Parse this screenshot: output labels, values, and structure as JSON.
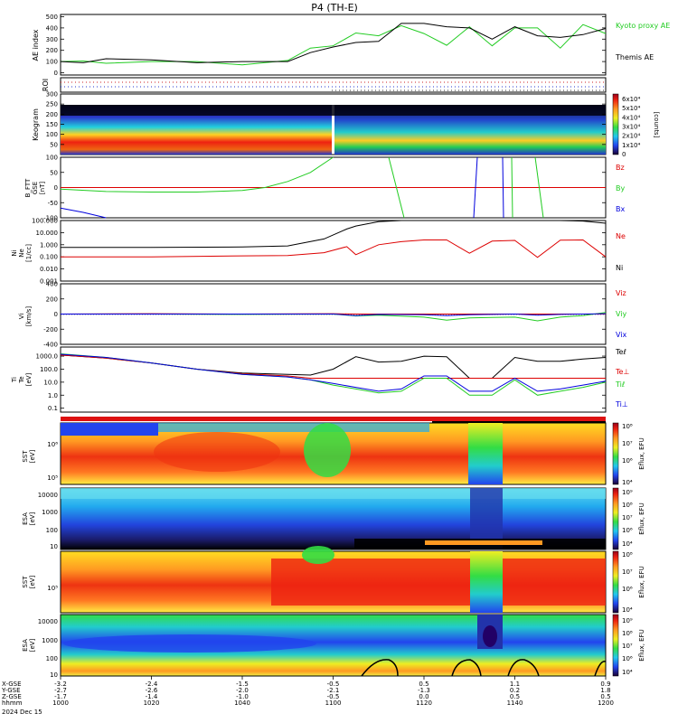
{
  "title": "P4 (TH-E)",
  "date_label": "2024 Dec 15",
  "time_axis": {
    "row_labels": [
      "X-GSE",
      "Y-GSE",
      "Z-GSE",
      "hhmm"
    ],
    "ticks": [
      {
        "time": "1000",
        "x": "-3.2",
        "y": "-2.7",
        "z": "-1.7"
      },
      {
        "time": "1020",
        "x": "-2.4",
        "y": "-2.6",
        "z": "-1.4"
      },
      {
        "time": "1040",
        "x": "-1.5",
        "y": "-2.0",
        "z": "-1.0"
      },
      {
        "time": "1100",
        "x": "-0.5",
        "y": "-2.1",
        "z": "-0.5"
      },
      {
        "time": "1120",
        "x": "0.5",
        "y": "-1.3",
        "z": "0.0"
      },
      {
        "time": "1140",
        "x": "1.1",
        "y": "0.2",
        "z": "0.5"
      },
      {
        "time": "1200",
        "x": "0.9",
        "y": "1.8",
        "z": "0.5"
      }
    ]
  },
  "colors": {
    "black": "#000000",
    "green": "#22cc22",
    "red": "#dd0000",
    "blue": "#0000dd"
  },
  "chart_data": [
    {
      "type": "line",
      "panel": "ae",
      "ylabel": "AE index",
      "yticks": [
        "0",
        "100",
        "200",
        "300",
        "400",
        "500"
      ],
      "ylim": [
        0,
        500
      ],
      "x": [
        0,
        5,
        10,
        20,
        30,
        40,
        50,
        55,
        60,
        65,
        70,
        75,
        80,
        85,
        90,
        95,
        100,
        105,
        110,
        115,
        120
      ],
      "series": [
        {
          "name": "Kyoto proxy AE",
          "color": "#22cc22",
          "values": [
            100,
            105,
            85,
            100,
            100,
            70,
            110,
            220,
            240,
            355,
            330,
            420,
            350,
            245,
            410,
            240,
            400,
            400,
            220,
            430,
            350
          ]
        },
        {
          "name": "Themis AE",
          "color": "#000000",
          "values": [
            100,
            90,
            125,
            115,
            90,
            100,
            100,
            180,
            230,
            270,
            280,
            440,
            440,
            410,
            400,
            300,
            410,
            330,
            315,
            340,
            395
          ]
        }
      ],
      "legend": [
        "Kyoto proxy AE",
        "Themis AE"
      ]
    },
    {
      "type": "scatter",
      "panel": "roi",
      "ylabel": "ROI"
    },
    {
      "type": "heatmap",
      "panel": "keogram",
      "ylabel": "Keogram",
      "yticks": [
        "50",
        "100",
        "150",
        "200",
        "250",
        "300"
      ],
      "ylim": [
        0,
        300
      ],
      "colorbar_ticks": [
        "0",
        "1x10⁴",
        "2x10⁴",
        "3x10⁴",
        "4x10⁴",
        "5x10⁴",
        "6x10⁴"
      ],
      "colorbar_label": "[counts]"
    },
    {
      "type": "line",
      "panel": "bfield",
      "ylabel": [
        "B_FTT",
        "GSE",
        "[nT]"
      ],
      "yticks": [
        "-100",
        "-50",
        "0",
        "50",
        "100"
      ],
      "ylim": [
        -100,
        100
      ],
      "series": [
        {
          "name": "Bz",
          "color": "#dd0000",
          "x": [
            0,
            120
          ],
          "values": [
            0,
            0
          ]
        },
        {
          "name": "By",
          "color": "#22cc22",
          "x": [
            0,
            10,
            20,
            30,
            40,
            45,
            50,
            55,
            60
          ],
          "values": [
            -5,
            -13,
            -15,
            -15,
            -10,
            0,
            20,
            50,
            100
          ]
        },
        {
          "name": "Bx",
          "color": "#0000dd",
          "x": [
            0,
            5,
            10
          ],
          "values": [
            -68,
            -82,
            -100
          ]
        }
      ],
      "legend": [
        "Bz",
        "By",
        "Bx"
      ]
    },
    {
      "type": "line",
      "panel": "density",
      "ylabel": [
        "Ni",
        "Ne",
        "[1/cc]"
      ],
      "yticks": [
        "0.001",
        "0.010",
        "0.100",
        "1.000",
        "10.000",
        "100.000"
      ],
      "ylim": [
        0.001,
        100
      ],
      "log_scale": true,
      "x": [
        0,
        20,
        40,
        50,
        58,
        63,
        65,
        70,
        75,
        80,
        85,
        90,
        95,
        100,
        105,
        110,
        115,
        120
      ],
      "series": [
        {
          "name": "Ne",
          "color": "#dd0000",
          "values": [
            0.1,
            0.1,
            0.12,
            0.13,
            0.22,
            0.7,
            0.15,
            1,
            1.8,
            2.5,
            2.5,
            0.2,
            2,
            2.3,
            0.09,
            2.4,
            2.5,
            0.1
          ]
        },
        {
          "name": "Ni",
          "color": "#000000",
          "values": [
            0.6,
            0.6,
            0.65,
            0.8,
            3,
            20,
            35,
            80,
            100,
            100,
            100,
            100,
            100,
            100,
            100,
            100,
            90,
            60
          ]
        }
      ],
      "legend": [
        "Ne",
        "Ni"
      ]
    },
    {
      "type": "line",
      "panel": "velocity",
      "ylabel": [
        "Vi",
        "[km/s]"
      ],
      "yticks": [
        "-400",
        "-200",
        "0",
        "200",
        "400"
      ],
      "ylim": [
        -400,
        400
      ],
      "x": [
        0,
        20,
        40,
        60,
        65,
        70,
        80,
        85,
        90,
        95,
        100,
        105,
        110,
        115,
        120
      ],
      "series": [
        {
          "name": "Viz",
          "color": "#dd0000",
          "values": [
            0,
            5,
            0,
            5,
            0,
            0,
            0,
            0,
            0,
            0,
            0,
            0,
            0,
            0,
            0
          ]
        },
        {
          "name": "Viy",
          "color": "#22cc22",
          "values": [
            0,
            0,
            -5,
            0,
            -25,
            -15,
            -40,
            -80,
            -50,
            -45,
            -40,
            -90,
            -40,
            -20,
            20
          ]
        },
        {
          "name": "Vix",
          "color": "#0000dd",
          "values": [
            0,
            0,
            0,
            0,
            -20,
            -5,
            -10,
            -20,
            -10,
            -5,
            0,
            -15,
            -5,
            0,
            5
          ]
        }
      ],
      "legend": [
        "Viz",
        "Viy",
        "Vix"
      ]
    },
    {
      "type": "line",
      "panel": "temperature",
      "ylabel": [
        "Ti",
        "Te",
        "[eV]"
      ],
      "yticks": [
        "0.1",
        "1.0",
        "10.0",
        "100.0",
        "1000.0"
      ],
      "ylim": [
        0.05,
        5000
      ],
      "log_scale": true,
      "x": [
        0,
        10,
        20,
        30,
        40,
        50,
        55,
        60,
        65,
        70,
        75,
        80,
        85,
        90,
        95,
        100,
        105,
        110,
        115,
        120
      ],
      "series": [
        {
          "name": "Teℓ",
          "color": "#000000",
          "values": [
            1200,
            700,
            300,
            100,
            50,
            40,
            35,
            100,
            900,
            350,
            400,
            1000,
            900,
            20,
            20,
            800,
            400,
            400,
            600,
            800
          ]
        },
        {
          "name": "Te⊥",
          "color": "#dd0000",
          "values": [
            1200,
            700,
            300,
            100,
            45,
            30,
            20,
            20,
            20,
            20,
            20,
            20,
            20,
            20,
            20,
            20,
            20,
            20,
            20,
            20
          ]
        },
        {
          "name": "Tiℓ",
          "color": "#22cc22",
          "values": [
            1500,
            800,
            300,
            100,
            40,
            25,
            15,
            6,
            3,
            1.5,
            2,
            20,
            20,
            1,
            1,
            15,
            1,
            2,
            4,
            10
          ]
        },
        {
          "name": "Ti⊥",
          "color": "#0000dd",
          "values": [
            1400,
            800,
            300,
            100,
            40,
            25,
            15,
            8,
            4,
            2,
            3,
            30,
            30,
            2,
            2,
            20,
            2,
            3,
            6,
            12
          ]
        }
      ],
      "legend": [
        "Teℓ",
        "Te⊥",
        "Tiℓ",
        "Ti⊥"
      ]
    },
    {
      "type": "heatmap",
      "panel": "sst-e",
      "ylabel": [
        "SST",
        "[eV]"
      ],
      "yticks": [
        "10⁵",
        "10⁶"
      ],
      "colorbar_ticks": [
        "10⁶",
        "10⁷",
        "10⁸",
        "10⁴"
      ],
      "colorbar_label": "Eflux, EFU"
    },
    {
      "type": "heatmap",
      "panel": "esa-e",
      "ylabel": [
        "ESA",
        "[eV]"
      ],
      "yticks": [
        "10",
        "100",
        "1000",
        "10000"
      ],
      "colorbar_ticks": [
        "10⁵",
        "10⁶",
        "10⁷",
        "10⁸",
        "10⁹",
        "10⁴"
      ],
      "colorbar_label": "Eflux, EFU"
    },
    {
      "type": "heatmap",
      "panel": "sst-i",
      "ylabel": [
        "SST",
        "[eV]"
      ],
      "yticks": [
        "10⁵"
      ],
      "colorbar_ticks": [
        "10⁶",
        "10⁷",
        "10⁸",
        "10⁴"
      ],
      "colorbar_label": "Eflux, EFU"
    },
    {
      "type": "heatmap",
      "panel": "esa-i",
      "ylabel": [
        "ESA",
        "[eV]"
      ],
      "yticks": [
        "10",
        "100",
        "1000",
        "10000"
      ],
      "colorbar_ticks": [
        "10⁵",
        "10⁶",
        "10⁷",
        "10⁸",
        "10⁹",
        "10⁴"
      ],
      "colorbar_label": "Eflux, EFU"
    }
  ]
}
